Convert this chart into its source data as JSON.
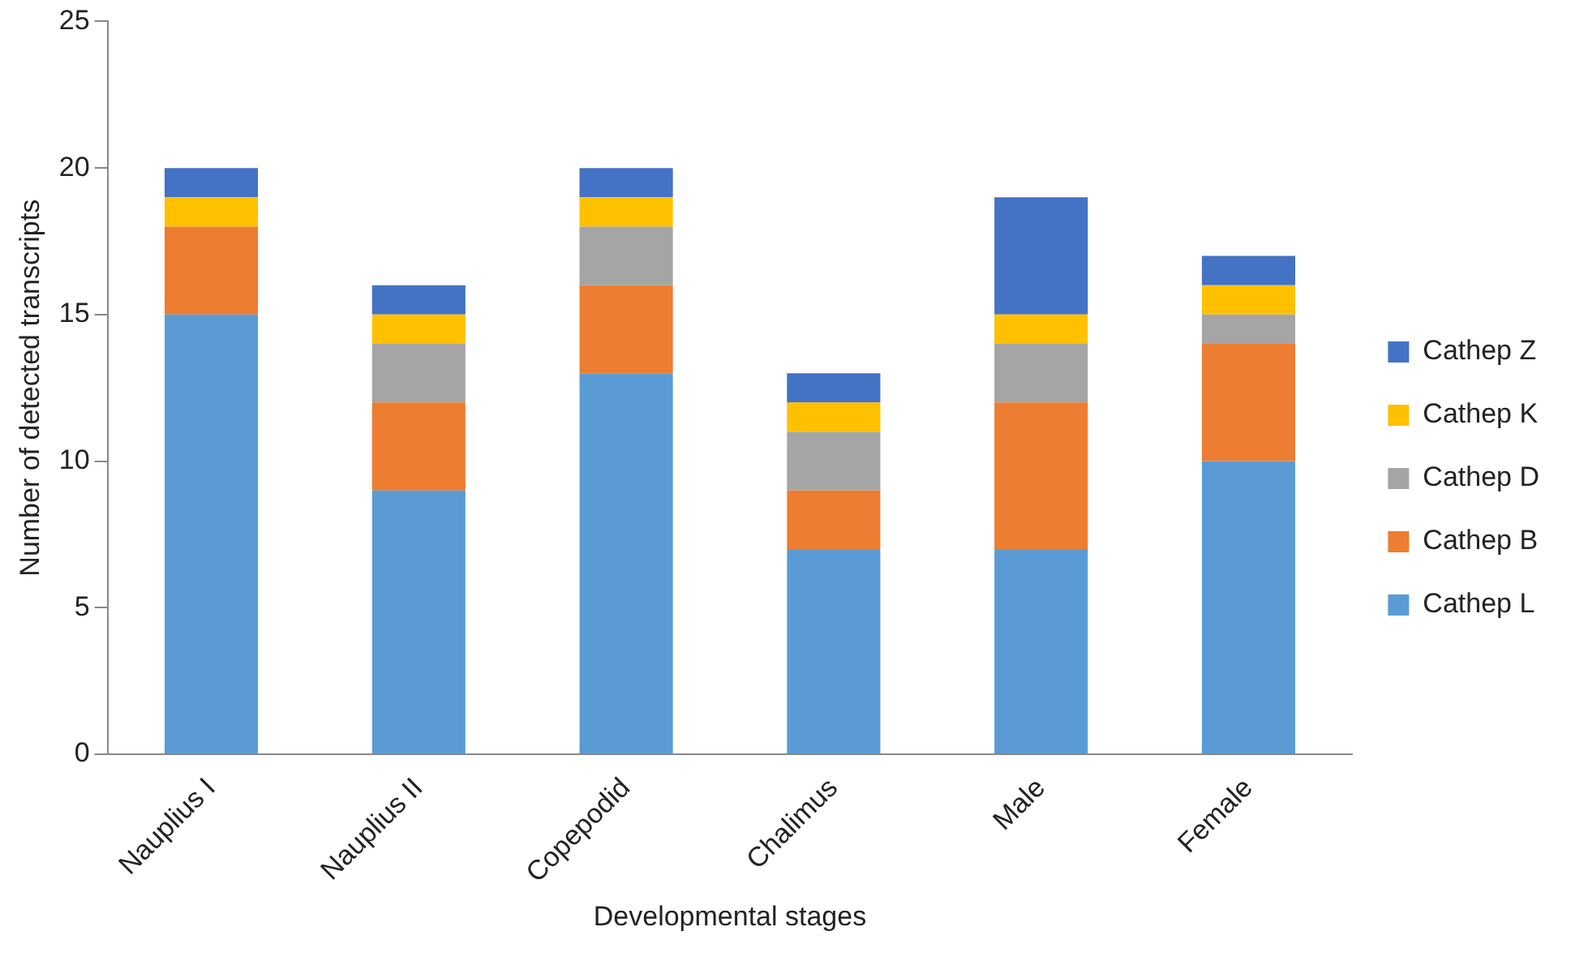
{
  "chart_data": {
    "type": "bar",
    "stacked": true,
    "xlabel": "Developmental stages",
    "ylabel": "Number of detected transcripts",
    "categories": [
      "Nauplius I",
      "Nauplius II",
      "Copepodid",
      "Chalimus",
      "Male",
      "Female"
    ],
    "series": [
      {
        "name": "Cathep L",
        "color": "#5b9bd5",
        "values": [
          15,
          9,
          13,
          7,
          7,
          10
        ]
      },
      {
        "name": "Cathep B",
        "color": "#ed7d31",
        "values": [
          3,
          3,
          3,
          2,
          5,
          4
        ]
      },
      {
        "name": "Cathep D",
        "color": "#a5a5a5",
        "values": [
          0,
          2,
          2,
          2,
          2,
          1
        ]
      },
      {
        "name": "Cathep K",
        "color": "#ffc000",
        "values": [
          1,
          1,
          1,
          1,
          1,
          1
        ]
      },
      {
        "name": "Cathep Z",
        "color": "#4472c4",
        "values": [
          1,
          1,
          1,
          1,
          4,
          1
        ]
      }
    ],
    "ylim": [
      0,
      25
    ],
    "yticks": [
      0,
      5,
      10,
      15,
      20,
      25
    ],
    "grid": false,
    "legend": "right"
  }
}
